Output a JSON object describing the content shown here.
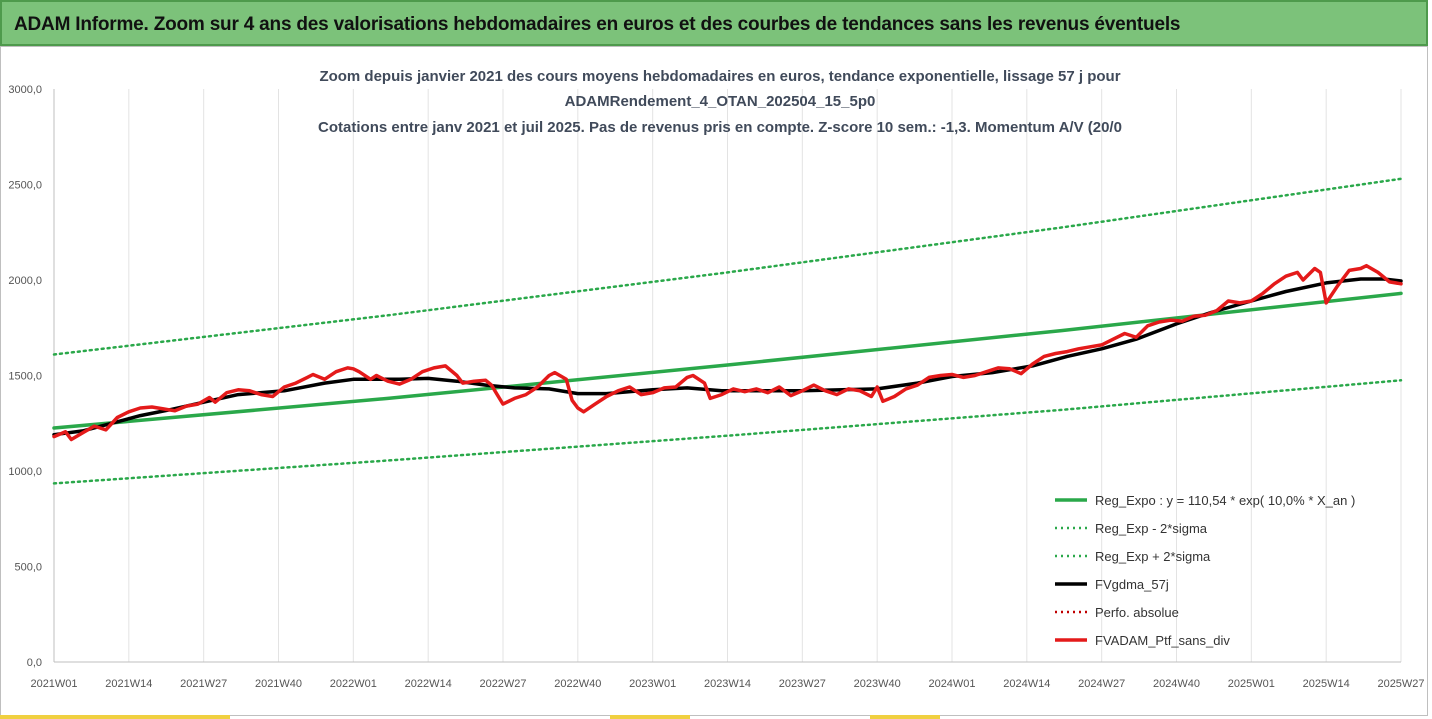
{
  "banner": {
    "title": "ADAM Informe. Zoom sur 4 ans des valorisations hebdomadaires en euros et des courbes de tendances sans les revenus éventuels",
    "accent_color": "#7cc27a"
  },
  "chart_data": {
    "type": "line",
    "title_lines": [
      "Zoom depuis janvier 2021 des cours moyens hebdomadaires  en euros, tendance exponentielle, lissage 57 j pour",
      "ADAMRendement_4_OTAN_202504_15_5p0",
      "Cotations entre janv 2021 et juil 2025. Pas de revenus pris en compte. Z-score 10 sem.: -1,3. Momentum  A/V (20/0"
    ],
    "ylim": [
      0,
      3000
    ],
    "y_ticks": [
      "0,0",
      "500,0",
      "1000,0",
      "1500,0",
      "2000,0",
      "2500,0",
      "3000,0"
    ],
    "y_tick_values": [
      0,
      500,
      1000,
      1500,
      2000,
      2500,
      3000
    ],
    "x_ticks": [
      "2021W01",
      "2021W14",
      "2021W27",
      "2021W40",
      "2022W01",
      "2022W14",
      "2022W27",
      "2022W40",
      "2023W01",
      "2023W14",
      "2023W27",
      "2023W40",
      "2024W01",
      "2024W14",
      "2024W27",
      "2024W40",
      "2025W01",
      "2025W14",
      "2025W27"
    ],
    "x_tick_weeks": [
      0,
      13,
      26,
      39,
      52,
      65,
      78,
      91,
      104,
      117,
      130,
      143,
      156,
      169,
      182,
      195,
      208,
      221,
      234
    ],
    "x_week_range": [
      0,
      234
    ],
    "grid": "vertical",
    "legend_position": "bottom-right",
    "series": [
      {
        "name": "Reg_Expo : y = 110,54 * exp( 10,0% *  X_an )",
        "color": "#2aa84a",
        "style": "solid",
        "width": 3.5,
        "points": [
          [
            0,
            1225
          ],
          [
            58,
            1380
          ],
          [
            117,
            1555
          ],
          [
            175,
            1735
          ],
          [
            234,
            1930
          ]
        ]
      },
      {
        "name": "Reg_Exp - 2*sigma",
        "color": "#2aa84a",
        "style": "dotted",
        "width": 2.5,
        "points": [
          [
            0,
            935
          ],
          [
            58,
            1055
          ],
          [
            117,
            1185
          ],
          [
            175,
            1320
          ],
          [
            234,
            1475
          ]
        ]
      },
      {
        "name": "Reg_Exp + 2*sigma",
        "color": "#2aa84a",
        "style": "dotted",
        "width": 2.5,
        "points": [
          [
            0,
            1610
          ],
          [
            58,
            1815
          ],
          [
            117,
            2040
          ],
          [
            175,
            2275
          ],
          [
            234,
            2530
          ]
        ]
      },
      {
        "name": "FVgdma_57j",
        "color": "#000000",
        "style": "solid",
        "width": 3.5,
        "points": [
          [
            0,
            1190
          ],
          [
            5,
            1210
          ],
          [
            10,
            1250
          ],
          [
            15,
            1290
          ],
          [
            20,
            1320
          ],
          [
            26,
            1360
          ],
          [
            32,
            1400
          ],
          [
            40,
            1420
          ],
          [
            47,
            1460
          ],
          [
            52,
            1480
          ],
          [
            60,
            1480
          ],
          [
            65,
            1485
          ],
          [
            70,
            1470
          ],
          [
            75,
            1450
          ],
          [
            80,
            1435
          ],
          [
            86,
            1430
          ],
          [
            91,
            1405
          ],
          [
            96,
            1405
          ],
          [
            104,
            1425
          ],
          [
            110,
            1435
          ],
          [
            116,
            1420
          ],
          [
            130,
            1420
          ],
          [
            143,
            1430
          ],
          [
            150,
            1460
          ],
          [
            156,
            1495
          ],
          [
            163,
            1515
          ],
          [
            170,
            1550
          ],
          [
            176,
            1600
          ],
          [
            182,
            1640
          ],
          [
            188,
            1690
          ],
          [
            195,
            1770
          ],
          [
            201,
            1830
          ],
          [
            208,
            1890
          ],
          [
            214,
            1940
          ],
          [
            221,
            1985
          ],
          [
            227,
            2005
          ],
          [
            231,
            2005
          ],
          [
            234,
            1995
          ]
        ]
      },
      {
        "name": "Perfo. absolue",
        "color": "#c00000",
        "style": "dotted",
        "width": 2.5,
        "points": []
      },
      {
        "name": "FVADAM_Ptf_sans_div",
        "color": "#e41a1a",
        "style": "solid",
        "width": 3.5,
        "points": [
          [
            0,
            1180
          ],
          [
            2,
            1205
          ],
          [
            3,
            1165
          ],
          [
            5,
            1200
          ],
          [
            7,
            1235
          ],
          [
            9,
            1215
          ],
          [
            11,
            1280
          ],
          [
            13,
            1310
          ],
          [
            15,
            1330
          ],
          [
            17,
            1335
          ],
          [
            19,
            1325
          ],
          [
            21,
            1315
          ],
          [
            23,
            1340
          ],
          [
            25,
            1350
          ],
          [
            27,
            1385
          ],
          [
            28,
            1360
          ],
          [
            30,
            1410
          ],
          [
            32,
            1425
          ],
          [
            34,
            1420
          ],
          [
            36,
            1400
          ],
          [
            38,
            1390
          ],
          [
            40,
            1440
          ],
          [
            42,
            1460
          ],
          [
            44,
            1490
          ],
          [
            45,
            1505
          ],
          [
            47,
            1480
          ],
          [
            49,
            1520
          ],
          [
            51,
            1540
          ],
          [
            52,
            1535
          ],
          [
            53,
            1520
          ],
          [
            55,
            1480
          ],
          [
            56,
            1500
          ],
          [
            58,
            1470
          ],
          [
            60,
            1455
          ],
          [
            62,
            1480
          ],
          [
            64,
            1520
          ],
          [
            66,
            1540
          ],
          [
            68,
            1550
          ],
          [
            70,
            1500
          ],
          [
            71,
            1460
          ],
          [
            73,
            1470
          ],
          [
            75,
            1475
          ],
          [
            76,
            1450
          ],
          [
            77,
            1400
          ],
          [
            78,
            1350
          ],
          [
            80,
            1380
          ],
          [
            82,
            1400
          ],
          [
            84,
            1440
          ],
          [
            86,
            1500
          ],
          [
            87,
            1515
          ],
          [
            89,
            1480
          ],
          [
            90,
            1370
          ],
          [
            91,
            1330
          ],
          [
            92,
            1310
          ],
          [
            94,
            1350
          ],
          [
            96,
            1390
          ],
          [
            98,
            1420
          ],
          [
            100,
            1440
          ],
          [
            102,
            1400
          ],
          [
            104,
            1410
          ],
          [
            106,
            1435
          ],
          [
            108,
            1440
          ],
          [
            110,
            1490
          ],
          [
            111,
            1500
          ],
          [
            113,
            1460
          ],
          [
            114,
            1380
          ],
          [
            116,
            1400
          ],
          [
            118,
            1430
          ],
          [
            120,
            1415
          ],
          [
            122,
            1430
          ],
          [
            124,
            1410
          ],
          [
            126,
            1440
          ],
          [
            128,
            1395
          ],
          [
            130,
            1420
          ],
          [
            132,
            1450
          ],
          [
            134,
            1420
          ],
          [
            136,
            1400
          ],
          [
            138,
            1430
          ],
          [
            140,
            1420
          ],
          [
            142,
            1390
          ],
          [
            143,
            1440
          ],
          [
            144,
            1365
          ],
          [
            146,
            1390
          ],
          [
            148,
            1430
          ],
          [
            150,
            1450
          ],
          [
            152,
            1490
          ],
          [
            154,
            1500
          ],
          [
            156,
            1505
          ],
          [
            158,
            1490
          ],
          [
            160,
            1500
          ],
          [
            162,
            1520
          ],
          [
            164,
            1540
          ],
          [
            166,
            1535
          ],
          [
            168,
            1510
          ],
          [
            170,
            1560
          ],
          [
            172,
            1600
          ],
          [
            174,
            1615
          ],
          [
            176,
            1625
          ],
          [
            178,
            1640
          ],
          [
            180,
            1650
          ],
          [
            182,
            1660
          ],
          [
            184,
            1690
          ],
          [
            186,
            1720
          ],
          [
            188,
            1700
          ],
          [
            190,
            1760
          ],
          [
            192,
            1780
          ],
          [
            194,
            1790
          ],
          [
            196,
            1785
          ],
          [
            198,
            1810
          ],
          [
            200,
            1815
          ],
          [
            202,
            1840
          ],
          [
            204,
            1890
          ],
          [
            206,
            1880
          ],
          [
            208,
            1890
          ],
          [
            210,
            1930
          ],
          [
            212,
            1980
          ],
          [
            214,
            2020
          ],
          [
            216,
            2040
          ],
          [
            217,
            2000
          ],
          [
            219,
            2060
          ],
          [
            220,
            2040
          ],
          [
            221,
            1880
          ],
          [
            223,
            1970
          ],
          [
            225,
            2050
          ],
          [
            227,
            2060
          ],
          [
            228,
            2075
          ],
          [
            230,
            2040
          ],
          [
            232,
            1990
          ],
          [
            234,
            1980
          ]
        ]
      }
    ]
  }
}
